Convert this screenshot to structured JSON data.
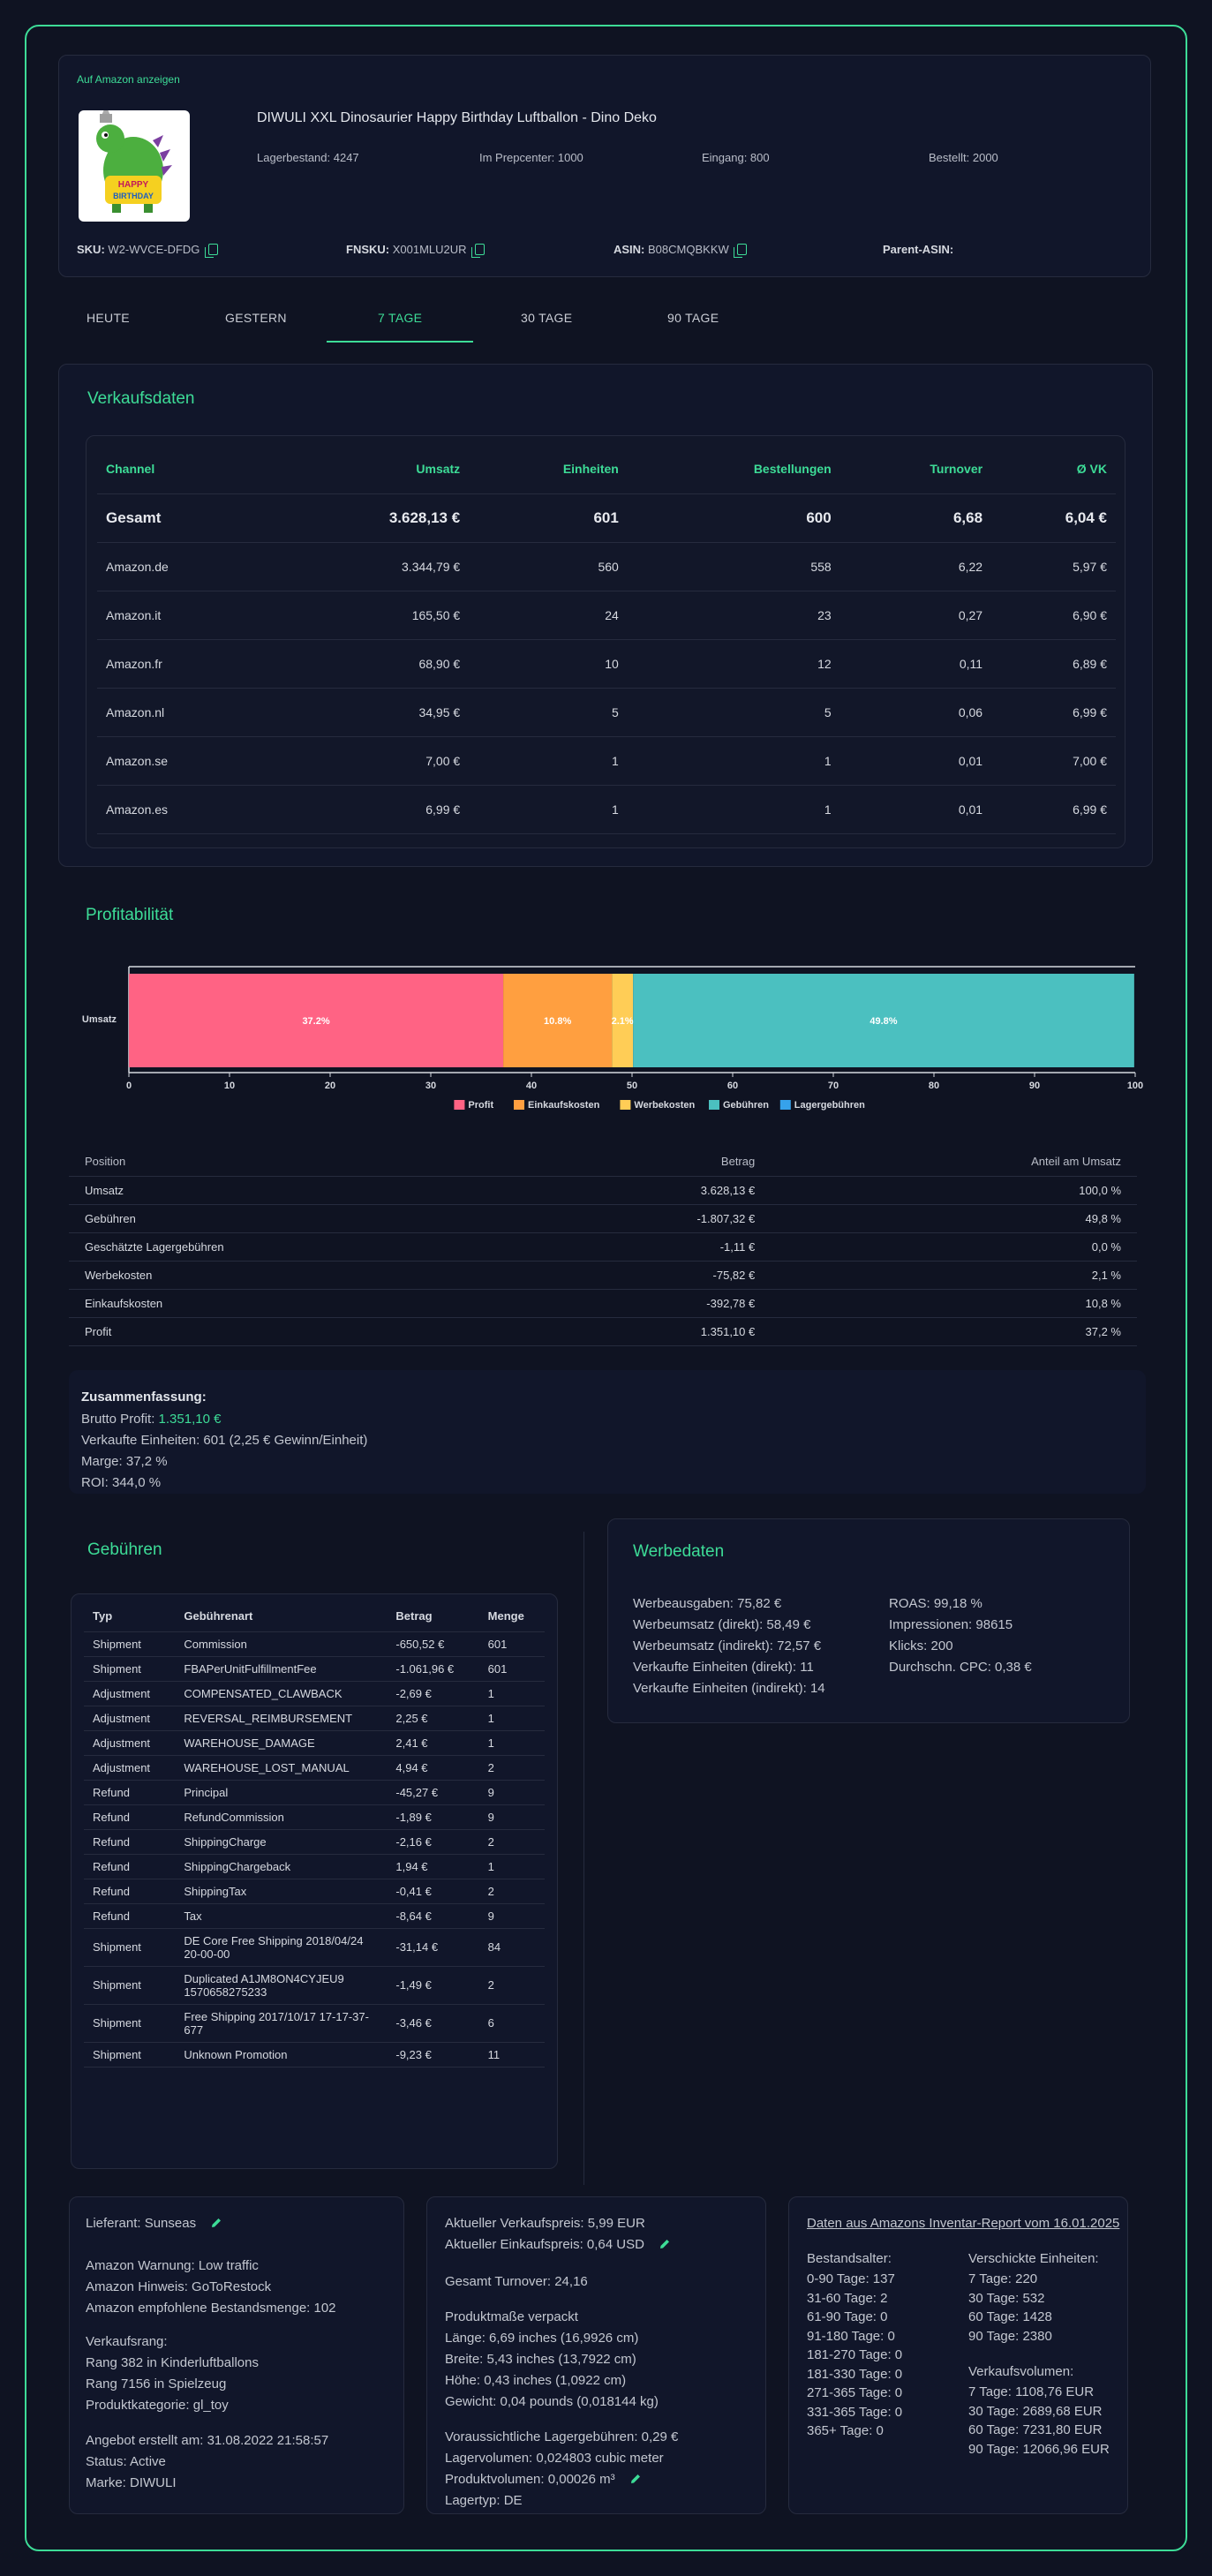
{
  "product": {
    "amazon_link": "Auf Amazon anzeigen",
    "title": "DIWULI XXL Dinosaurier Happy Birthday Luftballon - Dino Deko",
    "image_alt": "HAPPY BIRTHDAY",
    "stock": "Lagerbestand: 4247",
    "prepcenter": "Im Prepcenter: 1000",
    "inbound": "Eingang: 800",
    "ordered": "Bestellt: 2000",
    "sku_label": "SKU:",
    "sku": "W2-WVCE-DFDG",
    "fnsku_label": "FNSKU:",
    "fnsku": "X001MLU2UR",
    "asin_label": "ASIN:",
    "asin": "B08CMQBKKW",
    "parent_label": "Parent-ASIN:"
  },
  "tabs": [
    "HEUTE",
    "GESTERN",
    "7 TAGE",
    "30 TAGE",
    "90 TAGE"
  ],
  "sales": {
    "heading": "Verkaufsdaten",
    "columns": [
      "Channel",
      "Umsatz",
      "Einheiten",
      "Bestellungen",
      "Turnover",
      "Ø VK"
    ],
    "rows": [
      [
        "Gesamt",
        "3.628,13 €",
        "601",
        "600",
        "6,68",
        "6,04 €"
      ],
      [
        "Amazon.de",
        "3.344,79 €",
        "560",
        "558",
        "6,22",
        "5,97 €"
      ],
      [
        "Amazon.it",
        "165,50 €",
        "24",
        "23",
        "0,27",
        "6,90 €"
      ],
      [
        "Amazon.fr",
        "68,90 €",
        "10",
        "12",
        "0,11",
        "6,89 €"
      ],
      [
        "Amazon.nl",
        "34,95 €",
        "5",
        "5",
        "0,06",
        "6,99 €"
      ],
      [
        "Amazon.se",
        "7,00 €",
        "1",
        "1",
        "0,01",
        "7,00 €"
      ],
      [
        "Amazon.es",
        "6,99 €",
        "1",
        "1",
        "0,01",
        "6,99 €"
      ]
    ]
  },
  "profit": {
    "heading": "Profitabilität",
    "summary_title": "Zusammenfassung:",
    "brutto_label": "Brutto Profit: ",
    "brutto_value": "1.351,10 €",
    "units": "Verkaufte Einheiten: 601 (2,25 € Gewinn/Einheit)",
    "margin": "Marge: 37,2 %",
    "roi": "ROI: 344,0 %",
    "table_columns": [
      "Position",
      "Betrag",
      "Anteil am Umsatz"
    ],
    "table_rows": [
      [
        "Umsatz",
        "3.628,13 €",
        "100,0 %"
      ],
      [
        "Gebühren",
        "-1.807,32 €",
        "49,8 %"
      ],
      [
        "Geschätzte Lagergebühren",
        "-1,11 €",
        "0,0 %"
      ],
      [
        "Werbekosten",
        "-75,82 €",
        "2,1 %"
      ],
      [
        "Einkaufskosten",
        "-392,78 €",
        "10,8 %"
      ],
      [
        "Profit",
        "1.351,10 €",
        "37,2 %"
      ]
    ]
  },
  "chart_data": {
    "type": "bar",
    "orientation": "horizontal-stacked",
    "categories": [
      "Umsatz"
    ],
    "series": [
      {
        "name": "Profit",
        "values": [
          37.2
        ],
        "label": "37.2%",
        "color": "#ff6384"
      },
      {
        "name": "Einkaufskosten",
        "values": [
          10.8
        ],
        "label": "10.8%",
        "color": "#ff9f40"
      },
      {
        "name": "Werbekosten",
        "values": [
          2.1
        ],
        "label": "2.1%",
        "color": "#ffcd56"
      },
      {
        "name": "Gebühren",
        "values": [
          49.8
        ],
        "label": "49.8%",
        "color": "#4bc0c0"
      },
      {
        "name": "Lagergebühren",
        "values": [
          0.0
        ],
        "label": "",
        "color": "#36a2eb"
      }
    ],
    "xlim": [
      0,
      100
    ],
    "xticks": [
      "0",
      "10",
      "20",
      "30",
      "40",
      "50",
      "60",
      "70",
      "80",
      "90",
      "100"
    ],
    "legend": "bottom-center"
  },
  "fees": {
    "heading": "Gebühren",
    "columns": [
      "Typ",
      "Gebührenart",
      "Betrag",
      "Menge"
    ],
    "rows": [
      [
        "Shipment",
        "Commission",
        "-650,52 €",
        "601"
      ],
      [
        "Shipment",
        "FBAPerUnitFulfillmentFee",
        "-1.061,96 €",
        "601"
      ],
      [
        "Adjustment",
        "COMPENSATED_CLAWBACK",
        "-2,69 €",
        "1"
      ],
      [
        "Adjustment",
        "REVERSAL_REIMBURSEMENT",
        "2,25 €",
        "1"
      ],
      [
        "Adjustment",
        "WAREHOUSE_DAMAGE",
        "2,41 €",
        "1"
      ],
      [
        "Adjustment",
        "WAREHOUSE_LOST_MANUAL",
        "4,94 €",
        "2"
      ],
      [
        "Refund",
        "Principal",
        "-45,27 €",
        "9"
      ],
      [
        "Refund",
        "RefundCommission",
        "-1,89 €",
        "9"
      ],
      [
        "Refund",
        "ShippingCharge",
        "-2,16 €",
        "2"
      ],
      [
        "Refund",
        "ShippingChargeback",
        "1,94 €",
        "1"
      ],
      [
        "Refund",
        "ShippingTax",
        "-0,41 €",
        "2"
      ],
      [
        "Refund",
        "Tax",
        "-8,64 €",
        "9"
      ],
      [
        "Shipment",
        "DE Core Free Shipping 2018/04/24 20-00-00",
        "-31,14 €",
        "84"
      ],
      [
        "Shipment",
        "Duplicated A1JM8ON4CYJEU9 1570658275233",
        "-1,49 €",
        "2"
      ],
      [
        "Shipment",
        "Free Shipping 2017/10/17 17-17-37-677",
        "-3,46 €",
        "6"
      ],
      [
        "Shipment",
        "Unknown Promotion",
        "-9,23 €",
        "11"
      ]
    ]
  },
  "ads": {
    "heading": "Werbedaten",
    "left": [
      "Werbeausgaben: 75,82 €",
      "Werbeumsatz (direkt): 58,49 €",
      "Werbeumsatz (indirekt): 72,57 €",
      "Verkaufte Einheiten (direkt): 11",
      "Verkaufte Einheiten (indirekt): 14"
    ],
    "right": [
      "ROAS: 99,18 %",
      "Impressionen: 98615",
      "Klicks: 200",
      "Durchschn. CPC: 0,38 €"
    ]
  },
  "supplier": {
    "supplier": "Lieferant: Sunseas",
    "warning": "Amazon Warnung: Low traffic",
    "hint": "Amazon Hinweis: GoToRestock",
    "recommended": "Amazon empfohlene Bestandsmenge: 102",
    "rank_title": "Verkaufsrang:",
    "rank1": "Rang 382 in Kinderluftballons",
    "rank2": "Rang 7156 in Spielzeug",
    "category": "Produktkategorie: gl_toy",
    "created": "Angebot erstellt am: 31.08.2022 21:58:57",
    "status": "Status: Active",
    "brand": "Marke: DIWULI"
  },
  "pricing": {
    "sell_price": "Aktueller Verkaufspreis: 5,99 EUR",
    "buy_price": "Aktueller Einkaufspreis: 0,64 USD",
    "turnover": "Gesamt Turnover: 24,16",
    "dims_title": "Produktmaße verpackt",
    "length": "Länge: 6,69 inches (16,9926 cm)",
    "width": "Breite: 5,43 inches (13,7922 cm)",
    "height": "Höhe: 0,43 inches (1,0922 cm)",
    "weight": "Gewicht: 0,04 pounds (0,018144 kg)",
    "storage_fee": "Voraussichtliche Lagergebühren: 0,29 €",
    "storage_volume": "Lagervolumen: 0,024803 cubic meter",
    "product_volume": "Produktvolumen: 0,00026 m³",
    "storage_type": "Lagertyp: DE"
  },
  "inventory": {
    "report_link": "Daten aus Amazons Inventar-Report vom 16.01.2025",
    "age_title": "Bestandsalter:",
    "ages": [
      "0-90 Tage: 137",
      "31-60 Tage: 2",
      "61-90 Tage: 0",
      "91-180 Tage: 0",
      "181-270 Tage: 0",
      "181-330 Tage: 0",
      "271-365 Tage: 0",
      "331-365 Tage: 0",
      "365+ Tage: 0"
    ],
    "shipped_title": "Verschickte Einheiten:",
    "shipped": [
      "7 Tage: 220",
      "30 Tage: 532",
      "60 Tage: 1428",
      "90 Tage: 2380"
    ],
    "volume_title": "Verkaufsvolumen:",
    "volume": [
      "7 Tage: 1108,76 EUR",
      "30 Tage: 2689,68 EUR",
      "60 Tage: 7231,80 EUR",
      "90 Tage: 12066,96 EUR"
    ]
  }
}
